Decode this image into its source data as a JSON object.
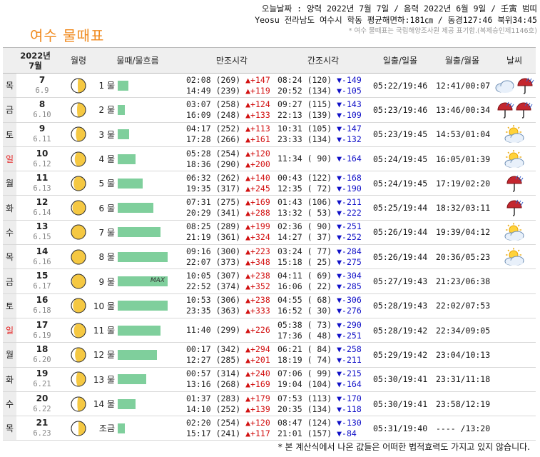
{
  "info": {
    "line1": "오늘날짜 : 양력 2022년 7월 7일 / 음력 2022년 6월 9일 / 壬寅 범띠",
    "line2": "Yeosu 전라남도 여수시 학동 평균해면하:181㎝ / 동경127:46 북위34:45",
    "line3": "* 여수 물때표는 국립해양조사원 제공 표기함.(복제승인제1146호)"
  },
  "title": "여수 물때표",
  "headers": {
    "date_year": "2022년",
    "date_month": "7월",
    "moon": "월령",
    "mul": "물때/물흐름",
    "high": "만조시각",
    "low": "간조시각",
    "sun": "일출/일몰",
    "moonrise": "월출/월몰",
    "weather": "날씨"
  },
  "colors": {
    "rise": "#d21010",
    "fall": "#1010c8",
    "sunday": "#e52020",
    "flow_bar": "#7fcf9c",
    "title": "#f08a1e"
  },
  "rows": [
    {
      "dow": "목",
      "sunday": false,
      "day": "7",
      "lunar": "6.9",
      "moon_phase": 0.55,
      "mul": "1 물",
      "flow": 0.22,
      "max": false,
      "high": [
        {
          "t": "02:08",
          "lv": "(269)",
          "ch": "▲+147"
        },
        {
          "t": "14:49",
          "lv": "(239)",
          "ch": "▲+119"
        }
      ],
      "low": [
        {
          "t": "08:24",
          "lv": "(120)",
          "ch": "▼-149"
        },
        {
          "t": "20:52",
          "lv": "(134)",
          "ch": "▼-105"
        }
      ],
      "sun": "05:22/19:46",
      "moontime": "12:41/00:07",
      "weather": [
        "cloud-icon",
        "rain-umbrella-icon"
      ]
    },
    {
      "dow": "금",
      "sunday": false,
      "day": "8",
      "lunar": "6.10",
      "moon_phase": 0.6,
      "mul": "2 물",
      "flow": 0.14,
      "max": false,
      "high": [
        {
          "t": "03:07",
          "lv": "(258)",
          "ch": "▲+124"
        },
        {
          "t": "16:09",
          "lv": "(248)",
          "ch": "▲+133"
        }
      ],
      "low": [
        {
          "t": "09:27",
          "lv": "(115)",
          "ch": "▼-143"
        },
        {
          "t": "22:13",
          "lv": "(139)",
          "ch": "▼-109"
        }
      ],
      "sun": "05:23/19:46",
      "moontime": "13:46/00:34",
      "weather": [
        "rain-umbrella-icon",
        "rain-umbrella-icon"
      ]
    },
    {
      "dow": "토",
      "sunday": false,
      "day": "9",
      "lunar": "6.11",
      "moon_phase": 0.68,
      "mul": "3 물",
      "flow": 0.23,
      "max": false,
      "high": [
        {
          "t": "04:17",
          "lv": "(252)",
          "ch": "▲+113"
        },
        {
          "t": "17:28",
          "lv": "(266)",
          "ch": "▲+161"
        }
      ],
      "low": [
        {
          "t": "10:31",
          "lv": "(105)",
          "ch": "▼-147"
        },
        {
          "t": "23:33",
          "lv": "(134)",
          "ch": "▼-132"
        }
      ],
      "sun": "05:23/19:45",
      "moontime": "14:53/01:04",
      "weather": [
        "sun-cloud-icon"
      ]
    },
    {
      "dow": "일",
      "sunday": true,
      "day": "10",
      "lunar": "6.12",
      "moon_phase": 0.76,
      "mul": "4 물",
      "flow": 0.36,
      "max": false,
      "high": [
        {
          "t": "05:28",
          "lv": "(254)",
          "ch": "▲+120"
        },
        {
          "t": "18:36",
          "lv": "(290)",
          "ch": "▲+200"
        }
      ],
      "low": [
        {
          "t": "11:34",
          "lv": "( 90)",
          "ch": "▼-164"
        }
      ],
      "sun": "05:24/19:45",
      "moontime": "16:05/01:39",
      "weather": [
        "sun-cloud-icon"
      ]
    },
    {
      "dow": "월",
      "sunday": false,
      "day": "11",
      "lunar": "6.13",
      "moon_phase": 0.84,
      "mul": "5 물",
      "flow": 0.5,
      "max": false,
      "high": [
        {
          "t": "06:32",
          "lv": "(262)",
          "ch": "▲+140"
        },
        {
          "t": "19:35",
          "lv": "(317)",
          "ch": "▲+245"
        }
      ],
      "low": [
        {
          "t": "00:43",
          "lv": "(122)",
          "ch": "▼-168"
        },
        {
          "t": "12:35",
          "lv": "( 72)",
          "ch": "▼-190"
        }
      ],
      "sun": "05:24/19:45",
      "moontime": "17:19/02:20",
      "weather": [
        "rain-umbrella-icon"
      ]
    },
    {
      "dow": "화",
      "sunday": false,
      "day": "12",
      "lunar": "6.14",
      "moon_phase": 0.92,
      "mul": "6 물",
      "flow": 0.71,
      "max": false,
      "high": [
        {
          "t": "07:31",
          "lv": "(275)",
          "ch": "▲+169"
        },
        {
          "t": "20:29",
          "lv": "(341)",
          "ch": "▲+288"
        }
      ],
      "low": [
        {
          "t": "01:43",
          "lv": "(106)",
          "ch": "▼-211"
        },
        {
          "t": "13:32",
          "lv": "( 53)",
          "ch": "▼-222"
        }
      ],
      "sun": "05:25/19:44",
      "moontime": "18:32/03:11",
      "weather": [
        "rain-umbrella-icon"
      ]
    },
    {
      "dow": "수",
      "sunday": false,
      "day": "13",
      "lunar": "6.15",
      "moon_phase": 1.0,
      "mul": "7 물",
      "flow": 0.86,
      "max": false,
      "high": [
        {
          "t": "08:25",
          "lv": "(289)",
          "ch": "▲+199"
        },
        {
          "t": "21:19",
          "lv": "(361)",
          "ch": "▲+324"
        }
      ],
      "low": [
        {
          "t": "02:36",
          "lv": "( 90)",
          "ch": "▼-251"
        },
        {
          "t": "14:27",
          "lv": "( 37)",
          "ch": "▼-252"
        }
      ],
      "sun": "05:26/19:44",
      "moontime": "19:39/04:12",
      "weather": [
        "sun-cloud-icon"
      ]
    },
    {
      "dow": "목",
      "sunday": false,
      "day": "14",
      "lunar": "6.16",
      "moon_phase": 1.0,
      "mul": "8 물",
      "flow": 1.0,
      "max": false,
      "high": [
        {
          "t": "09:16",
          "lv": "(300)",
          "ch": "▲+223"
        },
        {
          "t": "22:07",
          "lv": "(373)",
          "ch": "▲+348"
        }
      ],
      "low": [
        {
          "t": "03:24",
          "lv": "( 77)",
          "ch": "▼-284"
        },
        {
          "t": "15:18",
          "lv": "( 25)",
          "ch": "▼-275"
        }
      ],
      "sun": "05:26/19:44",
      "moontime": "20:36/05:23",
      "weather": [
        "sun-cloud-icon"
      ]
    },
    {
      "dow": "금",
      "sunday": false,
      "day": "15",
      "lunar": "6.17",
      "moon_phase": 0.95,
      "mul": "9 물",
      "flow": 1.0,
      "max": true,
      "max_label": "MAX",
      "high": [
        {
          "t": "10:05",
          "lv": "(307)",
          "ch": "▲+238"
        },
        {
          "t": "22:52",
          "lv": "(374)",
          "ch": "▲+352"
        }
      ],
      "low": [
        {
          "t": "04:11",
          "lv": "( 69)",
          "ch": "▼-304"
        },
        {
          "t": "16:06",
          "lv": "( 22)",
          "ch": "▼-285"
        }
      ],
      "sun": "05:27/19:43",
      "moontime": "21:23/06:38",
      "weather": []
    },
    {
      "dow": "토",
      "sunday": false,
      "day": "16",
      "lunar": "6.18",
      "moon_phase": 0.88,
      "mul": "10 물",
      "flow": 1.0,
      "max": false,
      "high": [
        {
          "t": "10:53",
          "lv": "(306)",
          "ch": "▲+238"
        },
        {
          "t": "23:35",
          "lv": "(363)",
          "ch": "▲+333"
        }
      ],
      "low": [
        {
          "t": "04:55",
          "lg": "",
          "lv": "( 68)",
          "ch": "▼-306"
        },
        {
          "t": "16:52",
          "lv": "( 30)",
          "ch": "▼-276"
        }
      ],
      "sun": "05:28/19:43",
      "moontime": "22:02/07:53",
      "weather": []
    },
    {
      "dow": "일",
      "sunday": true,
      "day": "17",
      "lunar": "6.19",
      "moon_phase": 0.82,
      "mul": "11 물",
      "flow": 0.86,
      "max": false,
      "high": [
        {
          "t": "11:40",
          "lv": "(299)",
          "ch": "▲+226"
        }
      ],
      "low": [
        {
          "t": "05:38",
          "lv": "( 73)",
          "ch": "▼-290"
        },
        {
          "t": "17:36",
          "lv": "( 48)",
          "ch": "▼-251"
        }
      ],
      "sun": "05:28/19:42",
      "moontime": "22:34/09:05",
      "weather": []
    },
    {
      "dow": "월",
      "sunday": false,
      "day": "18",
      "lunar": "6.20",
      "moon_phase": 0.74,
      "mul": "12 물",
      "flow": 0.79,
      "max": false,
      "high": [
        {
          "t": "00:17",
          "lv": "(342)",
          "ch": "▲+294"
        },
        {
          "t": "12:27",
          "lv": "(285)",
          "ch": "▲+201"
        }
      ],
      "low": [
        {
          "t": "06:21",
          "lv": "( 84)",
          "ch": "▼-258"
        },
        {
          "t": "18:19",
          "lv": "( 74)",
          "ch": "▼-211"
        }
      ],
      "sun": "05:29/19:42",
      "moontime": "23:04/10:13",
      "weather": []
    },
    {
      "dow": "화",
      "sunday": false,
      "day": "19",
      "lunar": "6.21",
      "moon_phase": 0.66,
      "mul": "13 물",
      "flow": 0.57,
      "max": false,
      "high": [
        {
          "t": "00:57",
          "lv": "(314)",
          "ch": "▲+240"
        },
        {
          "t": "13:16",
          "lv": "(268)",
          "ch": "▲+169"
        }
      ],
      "low": [
        {
          "t": "07:06",
          "lv": "( 99)",
          "ch": "▼-215"
        },
        {
          "t": "19:04",
          "lv": "(104)",
          "ch": "▼-164"
        }
      ],
      "sun": "05:30/19:41",
      "moontime": "23:31/11:18",
      "weather": []
    },
    {
      "dow": "수",
      "sunday": false,
      "day": "20",
      "lunar": "6.22",
      "moon_phase": 0.58,
      "mul": "14 물",
      "flow": 0.36,
      "max": false,
      "high": [
        {
          "t": "01:37",
          "lv": "(283)",
          "ch": "▲+179"
        },
        {
          "t": "14:10",
          "lv": "(252)",
          "ch": "▲+139"
        }
      ],
      "low": [
        {
          "t": "07:53",
          "lv": "(113)",
          "ch": "▼-170"
        },
        {
          "t": "20:35",
          "lv": "(134)",
          "ch": "▼-118"
        }
      ],
      "sun": "05:30/19:41",
      "moontime": "23:58/12:19",
      "weather": []
    },
    {
      "dow": "목",
      "sunday": false,
      "day": "21",
      "lunar": "6.23",
      "moon_phase": 0.5,
      "mul": "조금",
      "flow": 0.14,
      "max": false,
      "high": [
        {
          "t": "02:20",
          "lv": "(254)",
          "ch": "▲+120"
        },
        {
          "t": "15:17",
          "lv": "(241)",
          "ch": "▲+117"
        }
      ],
      "low": [
        {
          "t": "08:47",
          "lv": "(124)",
          "ch": "▼-130"
        },
        {
          "t": "21:01",
          "lv": "(157)",
          "ch": "▼-84"
        }
      ],
      "sun": "05:31/19:40",
      "moontime": "---- /13:20",
      "weather": []
    }
  ],
  "footnote": "* 본 계산식에서 나온 값들은 어떠한 법적효력도 가지고 있지 않습니다."
}
